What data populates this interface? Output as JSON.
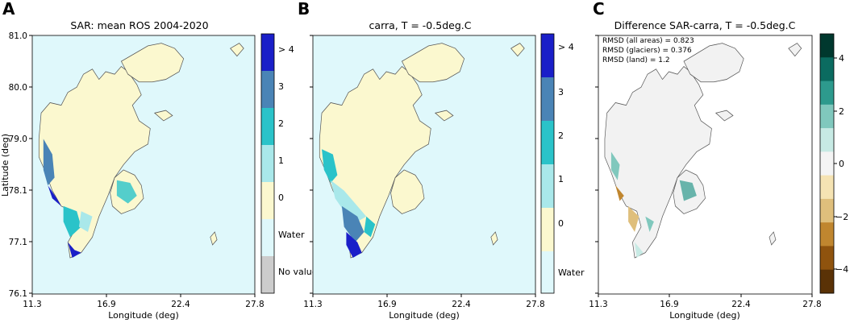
{
  "panels": [
    {
      "letter": "A",
      "title": "SAR: mean ROS 2004-2020",
      "ylabel": "Latitude (deg)",
      "xlabel": "Longitude (deg)",
      "xticks": [
        "11.3",
        "16.9",
        "22.4",
        "27.8"
      ],
      "yticks": [
        "81.0",
        "80.0",
        "79.0",
        "78.1",
        "77.1",
        "76.1"
      ],
      "colorbar": [
        {
          "label": "> 4",
          "color": "#1a1fc8"
        },
        {
          "label": "3",
          "color": "#4a84b6"
        },
        {
          "label": "2",
          "color": "#2ac3c9"
        },
        {
          "label": "1",
          "color": "#a9e8ea"
        },
        {
          "label": "0",
          "color": "#fbf8cf"
        },
        {
          "label": "Water",
          "color": "#dff8fb"
        },
        {
          "label": "No value",
          "color": "#cccccc"
        }
      ]
    },
    {
      "letter": "B",
      "title": "carra, T = -0.5deg.C",
      "xlabel": "Longitude (deg)",
      "xticks": [
        "11.3",
        "16.9",
        "22.4",
        "27.8"
      ],
      "colorbar": [
        {
          "label": "> 4",
          "color": "#1a1fc8"
        },
        {
          "label": "3",
          "color": "#4a84b6"
        },
        {
          "label": "2",
          "color": "#2ac3c9"
        },
        {
          "label": "1",
          "color": "#a9e8ea"
        },
        {
          "label": "0",
          "color": "#fbf8cf"
        },
        {
          "label": "Water",
          "color": "#dff8fb"
        }
      ]
    },
    {
      "letter": "C",
      "title": "Difference SAR-carra, T = -0.5deg.C",
      "xlabel": "Longitude (deg)",
      "xticks": [
        "11.3",
        "16.9",
        "22.4",
        "27.8"
      ],
      "stats": [
        "RMSD (all areas) = 0.823",
        "RMSD (glaciers) = 0.376",
        "RMSD (land) = 1.2"
      ],
      "colorbar_ticks": [
        "4",
        "2",
        "0",
        "−2",
        "−4"
      ],
      "colorbar_colors": [
        "#00382e",
        "#0b6b60",
        "#2d9a8d",
        "#80c8bd",
        "#c7eae4",
        "#f4f4f4",
        "#f5e3b3",
        "#dfbf7c",
        "#c0862f",
        "#8f530e",
        "#5a3206"
      ]
    }
  ]
}
